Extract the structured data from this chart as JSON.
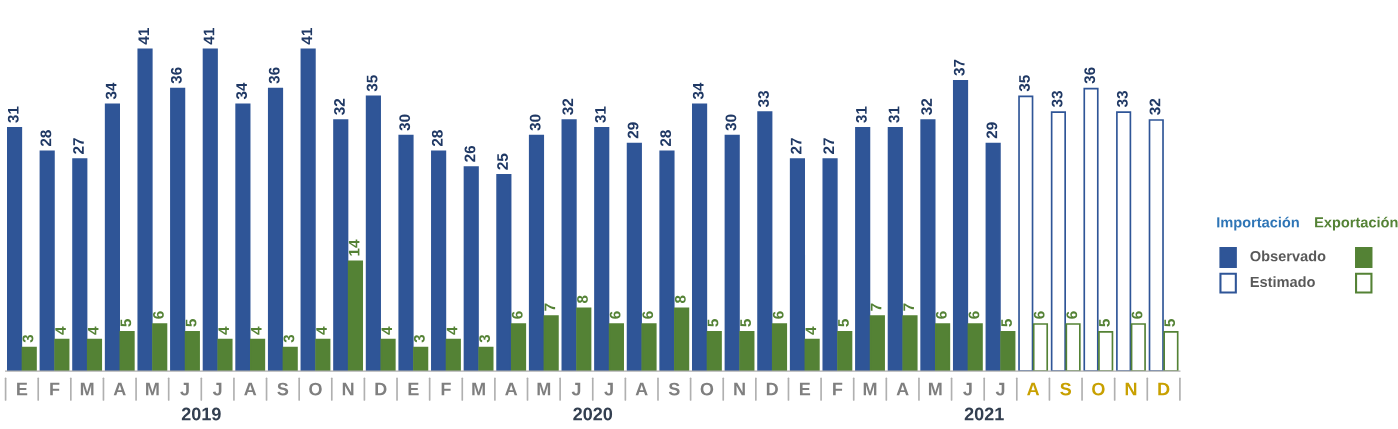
{
  "chart_data": {
    "type": "bar",
    "categories": [
      "E",
      "F",
      "M",
      "A",
      "M",
      "J",
      "J",
      "A",
      "S",
      "O",
      "N",
      "D",
      "E",
      "F",
      "M",
      "A",
      "M",
      "J",
      "J",
      "A",
      "S",
      "O",
      "N",
      "D",
      "E",
      "F",
      "M",
      "A",
      "M",
      "J",
      "J",
      "A",
      "S",
      "O",
      "N",
      "D"
    ],
    "series": [
      {
        "name": "Importación",
        "color": "#2f5597",
        "colors": [
          "#2f5597",
          "#2f5597",
          "#2f5597",
          "#2f5597",
          "#2f5597",
          "#2f5597",
          "#2f5597",
          "#2f5597",
          "#2f5597",
          "#2f5597",
          "#2f5597",
          "#2f5597",
          "#2f5597",
          "#2f5597",
          "#2f5597",
          "#2f5597",
          "#2f5597",
          "#2f5597",
          "#2f5597",
          "#2f5597",
          "#2f5597",
          "#2f5597",
          "#2f5597",
          "#2f5597",
          "#2f5597",
          "#2f5597",
          "#2f5597",
          "#2f5597",
          "#2f5597",
          "#2f5597",
          "#2f5597",
          "#ffffff",
          "#ffffff",
          "#ffffff",
          "#ffffff",
          "#ffffff"
        ],
        "values": [
          31,
          28,
          27,
          34,
          41,
          36,
          41,
          34,
          36,
          41,
          32,
          35,
          30,
          28,
          26,
          25,
          30,
          32,
          31,
          29,
          28,
          34,
          30,
          33,
          27,
          27,
          31,
          31,
          32,
          37,
          29,
          35,
          33,
          36,
          33,
          32
        ]
      },
      {
        "name": "Exportación",
        "color": "#548235",
        "colors": [
          "#548235",
          "#548235",
          "#548235",
          "#548235",
          "#548235",
          "#548235",
          "#548235",
          "#548235",
          "#548235",
          "#548235",
          "#548235",
          "#548235",
          "#548235",
          "#548235",
          "#548235",
          "#548235",
          "#548235",
          "#548235",
          "#548235",
          "#548235",
          "#548235",
          "#548235",
          "#548235",
          "#548235",
          "#548235",
          "#548235",
          "#548235",
          "#548235",
          "#548235",
          "#548235",
          "#548235",
          "#ffffff",
          "#ffffff",
          "#ffffff",
          "#ffffff",
          "#ffffff"
        ],
        "values": [
          3,
          4,
          4,
          5,
          6,
          5,
          4,
          4,
          3,
          4,
          14,
          4,
          3,
          4,
          3,
          6,
          7,
          8,
          6,
          6,
          8,
          5,
          5,
          6,
          4,
          5,
          7,
          7,
          6,
          6,
          5,
          6,
          6,
          5,
          6,
          5
        ]
      }
    ],
    "annotations": [
      "2019",
      "2020",
      "2021",
      "Observado",
      "Estimado"
    ],
    "data_labels": true,
    "legend": "right",
    "grid": false
  }
}
